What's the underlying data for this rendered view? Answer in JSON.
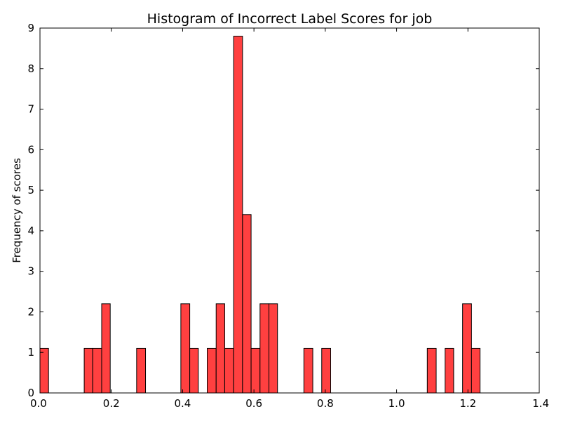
{
  "chart_data": {
    "type": "bar",
    "title": "Histogram of Incorrect Label Scores for job",
    "xlabel": "",
    "ylabel": "Frequency of scores",
    "xlim": [
      0.0,
      1.4
    ],
    "ylim": [
      0,
      9
    ],
    "x_ticks": [
      "0.0",
      "0.2",
      "0.4",
      "0.6",
      "0.8",
      "1.0",
      "1.2",
      "1.4"
    ],
    "y_ticks": [
      "0",
      "1",
      "2",
      "3",
      "4",
      "5",
      "6",
      "7",
      "8",
      "9"
    ],
    "grid": false,
    "bar_color": "#ff4040",
    "edge_color": "#000000",
    "bins": [
      {
        "x0": 0.0,
        "x1": 0.024,
        "value": 1.1
      },
      {
        "x0": 0.124,
        "x1": 0.148,
        "value": 1.1
      },
      {
        "x0": 0.148,
        "x1": 0.173,
        "value": 1.1
      },
      {
        "x0": 0.173,
        "x1": 0.197,
        "value": 2.2
      },
      {
        "x0": 0.271,
        "x1": 0.296,
        "value": 1.1
      },
      {
        "x0": 0.395,
        "x1": 0.42,
        "value": 2.2
      },
      {
        "x0": 0.42,
        "x1": 0.444,
        "value": 1.1
      },
      {
        "x0": 0.469,
        "x1": 0.494,
        "value": 1.1
      },
      {
        "x0": 0.494,
        "x1": 0.518,
        "value": 2.2
      },
      {
        "x0": 0.518,
        "x1": 0.543,
        "value": 1.1
      },
      {
        "x0": 0.543,
        "x1": 0.568,
        "value": 8.8
      },
      {
        "x0": 0.568,
        "x1": 0.592,
        "value": 4.4
      },
      {
        "x0": 0.592,
        "x1": 0.617,
        "value": 1.1
      },
      {
        "x0": 0.617,
        "x1": 0.642,
        "value": 2.2
      },
      {
        "x0": 0.642,
        "x1": 0.666,
        "value": 2.2
      },
      {
        "x0": 0.74,
        "x1": 0.765,
        "value": 1.1
      },
      {
        "x0": 0.79,
        "x1": 0.815,
        "value": 1.1
      },
      {
        "x0": 1.086,
        "x1": 1.111,
        "value": 1.1
      },
      {
        "x0": 1.136,
        "x1": 1.16,
        "value": 1.1
      },
      {
        "x0": 1.185,
        "x1": 1.21,
        "value": 2.2
      },
      {
        "x0": 1.21,
        "x1": 1.234,
        "value": 1.1
      }
    ]
  }
}
